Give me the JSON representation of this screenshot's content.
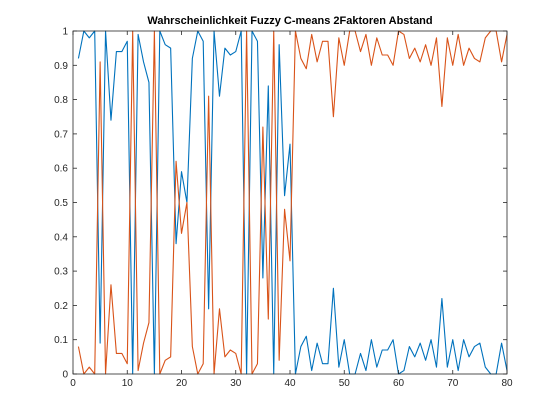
{
  "chart_data": {
    "type": "line",
    "title": "Wahrscheinlichkeit Fuzzy C-means 2Faktoren Abstand",
    "xlabel": "",
    "ylabel": "",
    "xlim": [
      0,
      80
    ],
    "ylim": [
      0,
      1
    ],
    "grid": false,
    "x_ticks": [
      0,
      10,
      20,
      30,
      40,
      50,
      60,
      70,
      80
    ],
    "x_tick_labels": [
      "0",
      "10",
      "20",
      "30",
      "40",
      "50",
      "60",
      "70",
      "80"
    ],
    "y_ticks": [
      0,
      0.1,
      0.2,
      0.3,
      0.4,
      0.5,
      0.6,
      0.7,
      0.8,
      0.9,
      1
    ],
    "y_tick_labels": [
      "0",
      "0.1",
      "0.2",
      "0.3",
      "0.4",
      "0.5",
      "0.6",
      "0.7",
      "0.8",
      "0.9",
      "1"
    ],
    "x": [
      1,
      2,
      3,
      4,
      5,
      6,
      7,
      8,
      9,
      10,
      11,
      12,
      13,
      14,
      15,
      16,
      17,
      18,
      19,
      20,
      21,
      22,
      23,
      24,
      25,
      26,
      27,
      28,
      29,
      30,
      31,
      32,
      33,
      34,
      35,
      36,
      37,
      38,
      39,
      40,
      41,
      42,
      43,
      44,
      45,
      46,
      47,
      48,
      49,
      50,
      51,
      52,
      53,
      54,
      55,
      56,
      57,
      58,
      59,
      60,
      61,
      62,
      63,
      64,
      65,
      66,
      67,
      68,
      69,
      70,
      71,
      72,
      73,
      74,
      75,
      76,
      77,
      78,
      79,
      80
    ],
    "series": [
      {
        "color": "#0072BD",
        "values": [
          0.92,
          1.0,
          0.98,
          1.0,
          0.09,
          1.0,
          0.74,
          0.94,
          0.94,
          0.97,
          0.0,
          0.99,
          0.91,
          0.85,
          0.0,
          1.0,
          0.96,
          0.95,
          0.38,
          0.59,
          0.5,
          0.92,
          1.0,
          0.97,
          0.19,
          1.0,
          0.81,
          0.95,
          0.93,
          0.94,
          1.0,
          0.0,
          1.0,
          0.97,
          0.28,
          0.84,
          0.0,
          0.96,
          0.52,
          0.67,
          0.0,
          0.08,
          0.11,
          0.01,
          0.09,
          0.03,
          0.03,
          0.25,
          0.02,
          0.1,
          0.0,
          0.0,
          0.06,
          0.01,
          0.1,
          0.02,
          0.07,
          0.07,
          0.1,
          0.0,
          0.01,
          0.08,
          0.05,
          0.09,
          0.04,
          0.1,
          0.02,
          0.22,
          0.02,
          0.1,
          0.01,
          0.1,
          0.05,
          0.08,
          0.09,
          0.02,
          0.0,
          0.0,
          0.09,
          0.01
        ]
      },
      {
        "color": "#D95319",
        "values": [
          0.08,
          0.0,
          0.02,
          0.0,
          0.91,
          0.0,
          0.26,
          0.06,
          0.06,
          0.03,
          1.0,
          0.01,
          0.09,
          0.15,
          1.0,
          0.0,
          0.04,
          0.05,
          0.62,
          0.41,
          0.5,
          0.08,
          0.0,
          0.03,
          0.81,
          0.0,
          0.19,
          0.05,
          0.07,
          0.06,
          0.0,
          1.0,
          0.0,
          0.03,
          0.72,
          0.16,
          1.0,
          0.04,
          0.48,
          0.33,
          1.0,
          0.92,
          0.89,
          0.99,
          0.91,
          0.97,
          0.97,
          0.75,
          0.98,
          0.9,
          1.0,
          1.0,
          0.94,
          0.99,
          0.9,
          0.98,
          0.93,
          0.93,
          0.9,
          1.0,
          0.99,
          0.92,
          0.95,
          0.91,
          0.96,
          0.9,
          0.98,
          0.78,
          0.98,
          0.9,
          0.99,
          0.9,
          0.95,
          0.92,
          0.91,
          0.98,
          1.0,
          1.0,
          0.91,
          0.99
        ]
      }
    ]
  }
}
